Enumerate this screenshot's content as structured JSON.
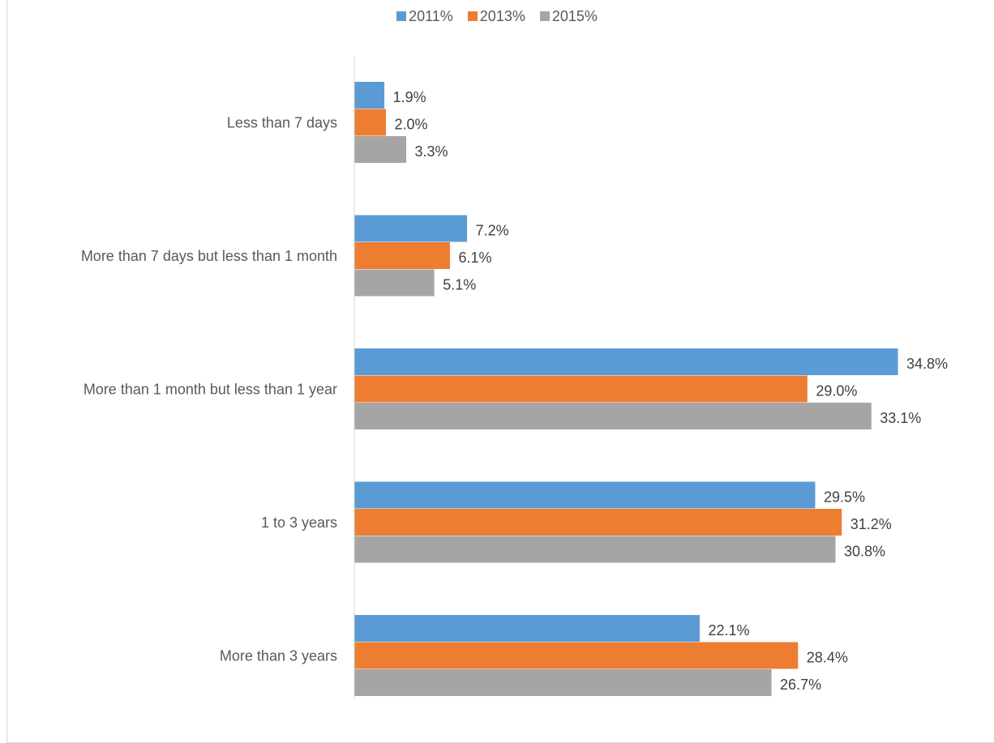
{
  "chart_data": {
    "type": "bar",
    "orientation": "horizontal",
    "categories": [
      "Less than 7 days",
      "More than 7 days but less than 1 month",
      "More than 1 month but less than 1 year",
      "1 to 3 years",
      "More than 3 years"
    ],
    "series": [
      {
        "name": "2011%",
        "color": "#5b9bd5",
        "values": [
          1.9,
          7.2,
          34.8,
          29.5,
          22.1
        ],
        "labels": [
          "1.9%",
          "7.2%",
          "34.8%",
          "29.5%",
          "22.1%"
        ]
      },
      {
        "name": "2013%",
        "color": "#ed7d31",
        "values": [
          2.0,
          6.1,
          29.0,
          31.2,
          28.4
        ],
        "labels": [
          "2.0%",
          "6.1%",
          "29.0%",
          "31.2%",
          "28.4%"
        ]
      },
      {
        "name": "2015%",
        "color": "#a5a5a5",
        "values": [
          3.3,
          5.1,
          33.1,
          30.8,
          26.7
        ],
        "labels": [
          "3.3%",
          "5.1%",
          "33.1%",
          "30.8%",
          "26.7%"
        ]
      }
    ],
    "xlim": [
      0,
      36
    ],
    "axis_visible": false,
    "grid": false,
    "legend_position": "top-center",
    "data_labels": true
  }
}
